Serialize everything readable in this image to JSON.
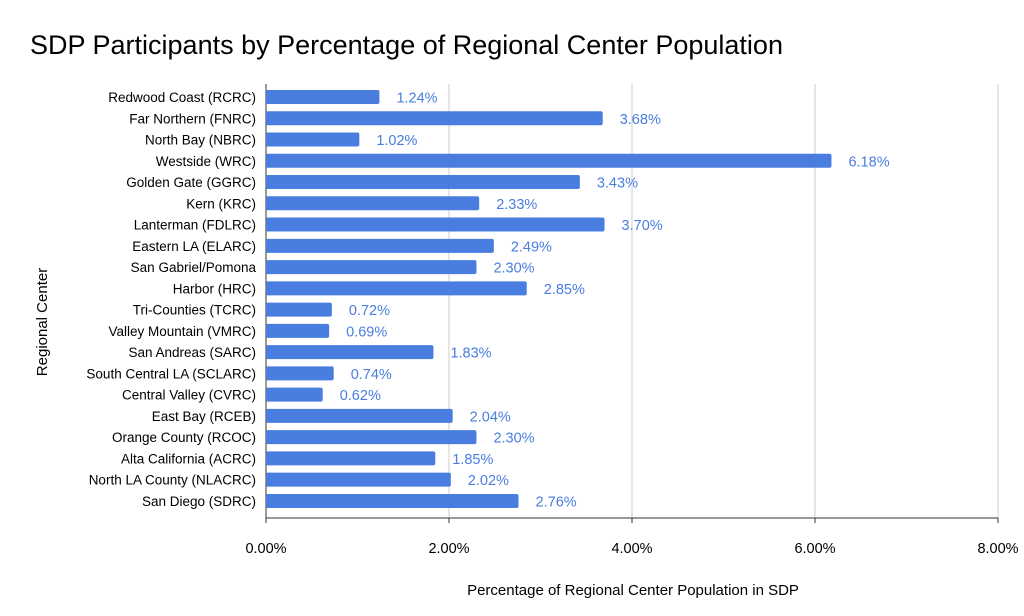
{
  "chart_data": {
    "type": "bar",
    "orientation": "horizontal",
    "title": "SDP Participants by Percentage of Regional Center Population",
    "xlabel": "Percentage of Regional Center Population in SDP",
    "ylabel": "Regional Center",
    "xlim": [
      0,
      8
    ],
    "xticks": [
      0,
      2,
      4,
      6,
      8
    ],
    "xtick_labels": [
      "0.00%",
      "2.00%",
      "4.00%",
      "6.00%",
      "8.00%"
    ],
    "grid": true,
    "bar_color": "#4a7de0",
    "categories": [
      "Redwood Coast (RCRC)",
      "Far Northern (FNRC)",
      "North Bay (NBRC)",
      "Westside (WRC)",
      "Golden Gate (GGRC)",
      "Kern (KRC)",
      "Lanterman (FDLRC)",
      "Eastern LA (ELARC)",
      "San Gabriel/Pomona",
      "Harbor (HRC)",
      "Tri-Counties (TCRC)",
      "Valley Mountain (VMRC)",
      "San Andreas (SARC)",
      "South Central LA (SCLARC)",
      "Central Valley (CVRC)",
      "East Bay (RCEB)",
      "Orange County (RCOC)",
      "Alta California (ACRC)",
      "North LA County (NLACRC)",
      "San Diego (SDRC)"
    ],
    "values": [
      1.24,
      3.68,
      1.02,
      6.18,
      3.43,
      2.33,
      3.7,
      2.49,
      2.3,
      2.85,
      0.72,
      0.69,
      1.83,
      0.74,
      0.62,
      2.04,
      2.3,
      1.85,
      2.02,
      2.76
    ],
    "data_labels": [
      "1.24%",
      "3.68%",
      "1.02%",
      "6.18%",
      "3.43%",
      "2.33%",
      "3.70%",
      "2.49%",
      "2.30%",
      "2.85%",
      "0.72%",
      "0.69%",
      "1.83%",
      "0.74%",
      "0.62%",
      "2.04%",
      "2.30%",
      "1.85%",
      "2.02%",
      "2.76%"
    ]
  }
}
